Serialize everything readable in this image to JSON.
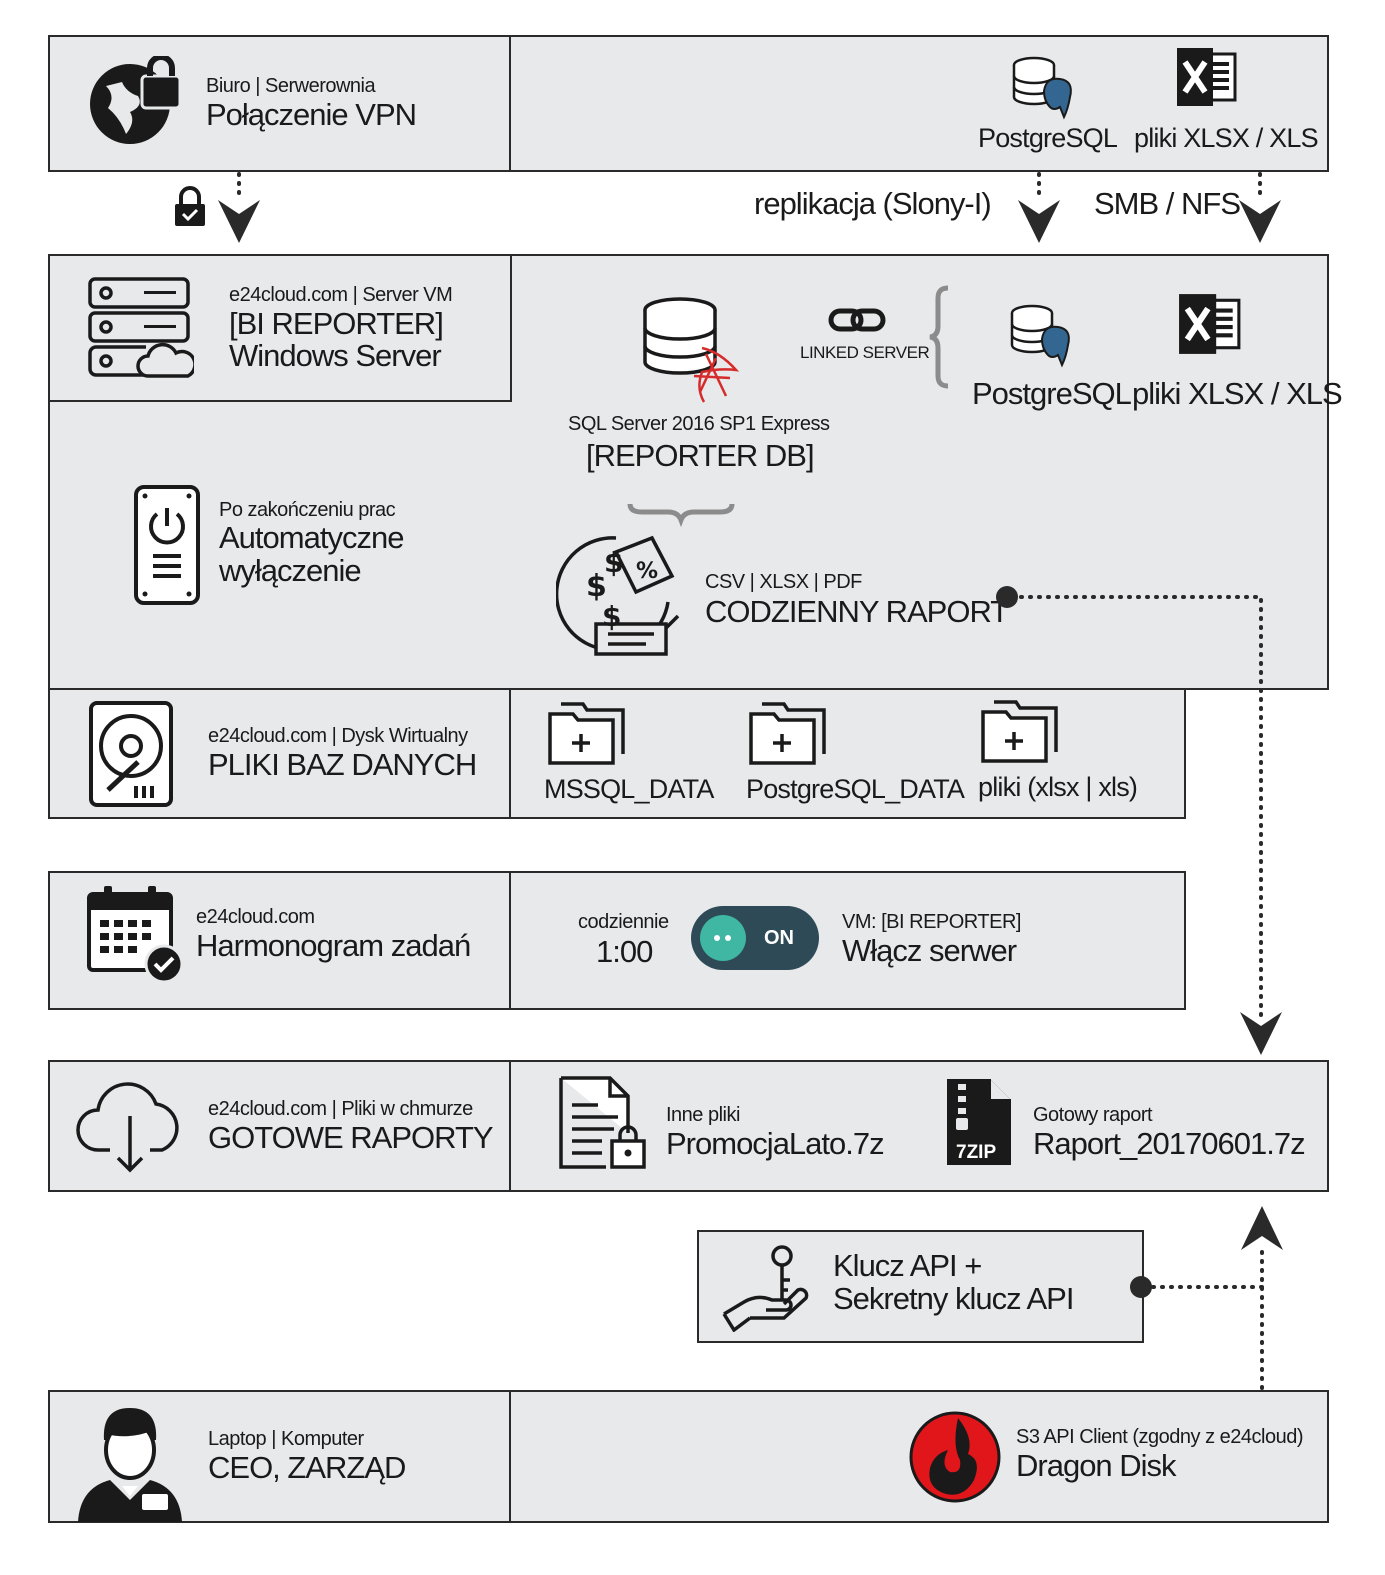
{
  "vpn": {
    "sub": "Biuro | Serwerownia",
    "title": "Połączenie VPN"
  },
  "office": {
    "postgres_label": "PostgreSQL",
    "xlsx_label": "pliki XLSX / XLS"
  },
  "links": {
    "replication": "replikacja (Slony-I)",
    "smb": "SMB / NFS"
  },
  "vm": {
    "sub": "e24cloud.com | Server VM",
    "name": "[BI REPORTER]",
    "os": "Windows Server"
  },
  "sql": {
    "sub": "SQL Server 2016 SP1 Express",
    "title": "[REPORTER DB]",
    "linked": "LINKED SERVER"
  },
  "vm_sources": {
    "postgres_label": "PostgreSQL",
    "xlsx_label": "pliki XLSX / XLS"
  },
  "shutdown": {
    "sub": "Po zakończeniu prac",
    "line1": "Automatyczne",
    "line2": "wyłączenie"
  },
  "report": {
    "sub": "CSV | XLSX | PDF",
    "title": "CODZIENNY RAPORT"
  },
  "disk": {
    "sub": "e24cloud.com | Dysk Wirtualny",
    "title": "PLIKI BAZ DANYCH",
    "folders": [
      "MSSQL_DATA",
      "PostgreSQL_DATA",
      "pliki (xlsx | xls)"
    ]
  },
  "schedule": {
    "sub": "e24cloud.com",
    "title": "Harmonogram zadań",
    "when": "codziennie",
    "time": "1:00",
    "toggle": "ON",
    "vm": "VM: [BI REPORTER]",
    "action": "Włącz serwer"
  },
  "cloud": {
    "sub": "e24cloud.com | Pliki w chmurze",
    "title": "GOTOWE RAPORTY",
    "other_sub": "Inne pliki",
    "other_file": "PromocjaLato.7z",
    "ready_sub": "Gotowy raport",
    "ready_file": "Raport_20170601.7z",
    "zip_badge": "7ZIP"
  },
  "api": {
    "line1": "Klucz API +",
    "line2": "Sekretny klucz API"
  },
  "ceo": {
    "sub": "Laptop | Komputer",
    "title": "CEO, ZARZĄD",
    "client_sub": "S3 API Client (zgodny z e24cloud)",
    "client": "Dragon Disk"
  },
  "colors": {
    "box_bg": "#e8e9eb",
    "border": "#2a2a2a",
    "toggle_bg": "#2e4a57",
    "toggle_knob": "#3fb7a2",
    "dragon_red": "#e0161b"
  }
}
